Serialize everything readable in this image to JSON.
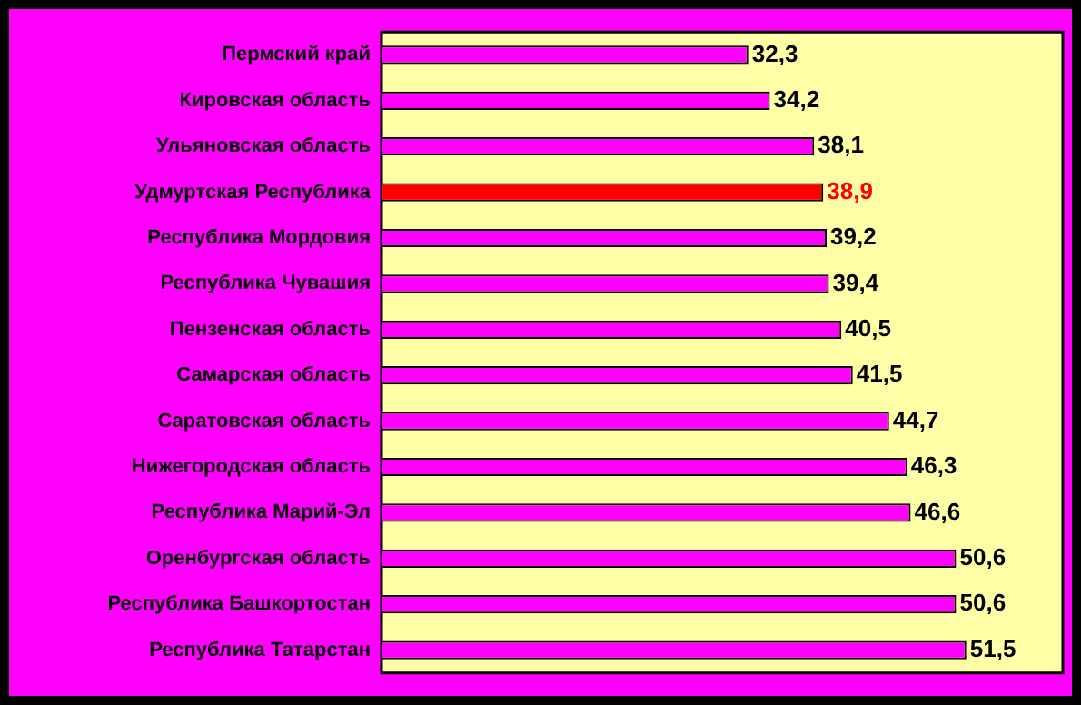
{
  "chart_data": {
    "type": "bar",
    "orientation": "horizontal",
    "categories": [
      "Пермский край",
      "Кировская область",
      "Ульяновская область",
      "Удмуртская Республика",
      "Республика Мордовия",
      "Республика Чувашия",
      "Пензенская область",
      "Самарская область",
      "Саратовская область",
      "Нижегородская область",
      "Республика Марий-Эл",
      "Оренбургская область",
      "Республика Башкортостан",
      "Республика Татарстан"
    ],
    "values": [
      32.3,
      34.2,
      38.1,
      38.9,
      39.2,
      39.4,
      40.5,
      41.5,
      44.7,
      46.3,
      46.6,
      50.6,
      50.6,
      51.5
    ],
    "colors": [
      "#ff00ff",
      "#ff00ff",
      "#ff00ff",
      "#ff0000",
      "#ff00ff",
      "#ff00ff",
      "#ff00ff",
      "#ff00ff",
      "#ff00ff",
      "#ff00ff",
      "#ff00ff",
      "#ff00ff",
      "#ff00ff",
      "#ff00ff"
    ],
    "value_labels": [
      "32,3",
      "34,2",
      "38,1",
      "38,9",
      "39,2",
      "39,4",
      "40,5",
      "41,5",
      "44,7",
      "46,3",
      "46,6",
      "50,6",
      "50,6",
      "51,5"
    ],
    "tick_labels": "y"
  }
}
